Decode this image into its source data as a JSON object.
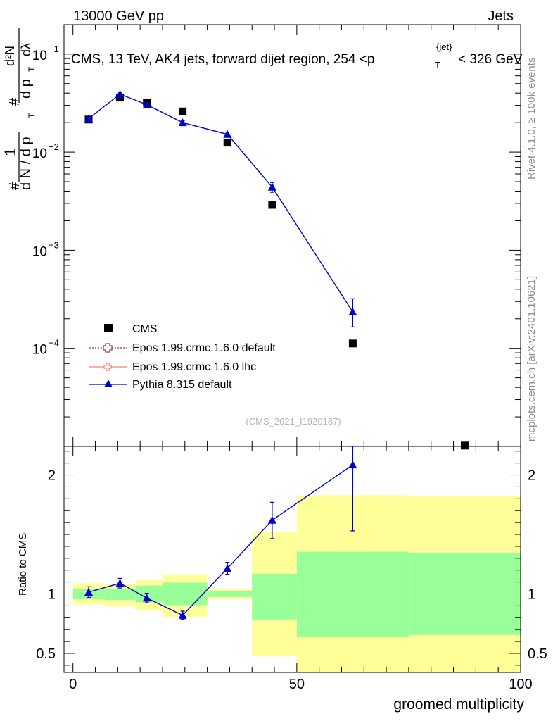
{
  "header": {
    "left": "13000 GeV pp",
    "right": "Jets",
    "title_prefix": "CMS, 13 TeV, AK4 jets, forward dijet region, 254 <p",
    "title_sup": "{jet}",
    "title_sub": "T",
    "title_suffix": "< 326 GeV"
  },
  "side": {
    "rivet": "Rivet 4.1.0, ≥ 100k events",
    "mcplots": "mcplots.cern.ch [arXiv:2401.10621]"
  },
  "watermark": "(CMS_2021_I1920187)",
  "ylabel_main": {
    "hash1": "#",
    "one": "1",
    "dN": "d N / d p",
    "T1": "T",
    "hash2": "#",
    "dp": "d p",
    "T2": "T",
    "d2N": "d²N",
    "dlambda": "dλ"
  },
  "legend": [
    {
      "label": "CMS"
    },
    {
      "label": "Epos 1.99.crmc.1.6.0 default"
    },
    {
      "label": "Epos 1.99.crmc.1.6.0 lhc"
    },
    {
      "label": "Pythia 8.315 default"
    }
  ],
  "colors": {
    "pythia": "#0000cc",
    "epos_default": "#9b3b5a",
    "epos_lhc": "#f08080",
    "band_yellow": "#ffff99",
    "band_green": "#99ff99"
  },
  "chart_data": [
    {
      "type": "scatter",
      "name": "main",
      "xlim": [
        -2,
        100
      ],
      "ylim_log10": [
        -5,
        -0.7
      ],
      "yscale": "log",
      "y_ticks": [
        {
          "value": 0.1,
          "base": "10",
          "exp": "−1"
        },
        {
          "value": 0.01,
          "base": "10",
          "exp": "−2"
        },
        {
          "value": 0.001,
          "base": "10",
          "exp": "−3"
        },
        {
          "value": 0.0001,
          "base": "10",
          "exp": "−4"
        }
      ],
      "series": [
        {
          "name": "CMS",
          "x": [
            3.5,
            10.5,
            16.5,
            24.5,
            34.5,
            44.5,
            62.5,
            87.5
          ],
          "y": [
            0.0215,
            0.036,
            0.032,
            0.026,
            0.0125,
            0.0029,
            0.000112,
            1.02e-05
          ]
        },
        {
          "name": "Pythia 8.315 default",
          "x": [
            3.5,
            10.5,
            16.5,
            24.5,
            34.5,
            44.5,
            62.5
          ],
          "y": [
            0.022,
            0.039,
            0.0305,
            0.02,
            0.0152,
            0.0044,
            0.000235
          ],
          "yerr_lo": [
            0.021,
            0.037,
            0.029,
            0.019,
            0.0145,
            0.0039,
            0.000165
          ],
          "yerr_hi": [
            0.023,
            0.041,
            0.032,
            0.021,
            0.016,
            0.0049,
            0.00032
          ]
        }
      ]
    },
    {
      "type": "scatter",
      "name": "ratio",
      "xlim": [
        -2,
        100
      ],
      "ylim": [
        0.34,
        2.24
      ],
      "ylabel": "Ratio to CMS",
      "xlabel": "groomed multiplicity",
      "y_ticks": [
        0.5,
        1,
        2
      ],
      "y_tick_labels": [
        "0.5",
        "1",
        "2"
      ],
      "x_ticks": [
        0,
        50,
        100
      ],
      "x_tick_labels": [
        "0",
        "50",
        "100"
      ],
      "bins": [
        [
          0,
          7
        ],
        [
          7,
          14
        ],
        [
          14,
          20
        ],
        [
          20,
          30
        ],
        [
          30,
          40
        ],
        [
          40,
          50
        ],
        [
          50,
          75
        ],
        [
          75,
          100
        ]
      ],
      "band_yellow": [
        [
          0.91,
          1.09
        ],
        [
          0.895,
          1.085
        ],
        [
          0.865,
          1.115
        ],
        [
          0.805,
          1.165
        ],
        [
          0.955,
          1.045
        ],
        [
          0.48,
          1.52
        ],
        [
          0.34,
          1.83
        ],
        [
          0.34,
          1.82
        ]
      ],
      "band_green": [
        [
          0.955,
          1.045
        ],
        [
          0.95,
          1.045
        ],
        [
          0.93,
          1.07
        ],
        [
          0.905,
          1.095
        ],
        [
          0.975,
          1.025
        ],
        [
          0.785,
          1.17
        ],
        [
          0.64,
          1.355
        ],
        [
          0.655,
          1.345
        ]
      ],
      "series": [
        {
          "name": "Pythia 8.315 default",
          "x": [
            3.5,
            10.5,
            16.5,
            24.5,
            34.5,
            44.5,
            62.5
          ],
          "y": [
            1.015,
            1.09,
            0.965,
            0.82,
            1.215,
            1.62,
            2.085
          ],
          "yerr_lo": [
            0.97,
            1.05,
            0.925,
            0.785,
            1.165,
            1.465,
            1.53
          ],
          "yerr_hi": [
            1.06,
            1.13,
            1.005,
            0.855,
            1.265,
            1.77,
            2.24
          ]
        }
      ]
    }
  ]
}
